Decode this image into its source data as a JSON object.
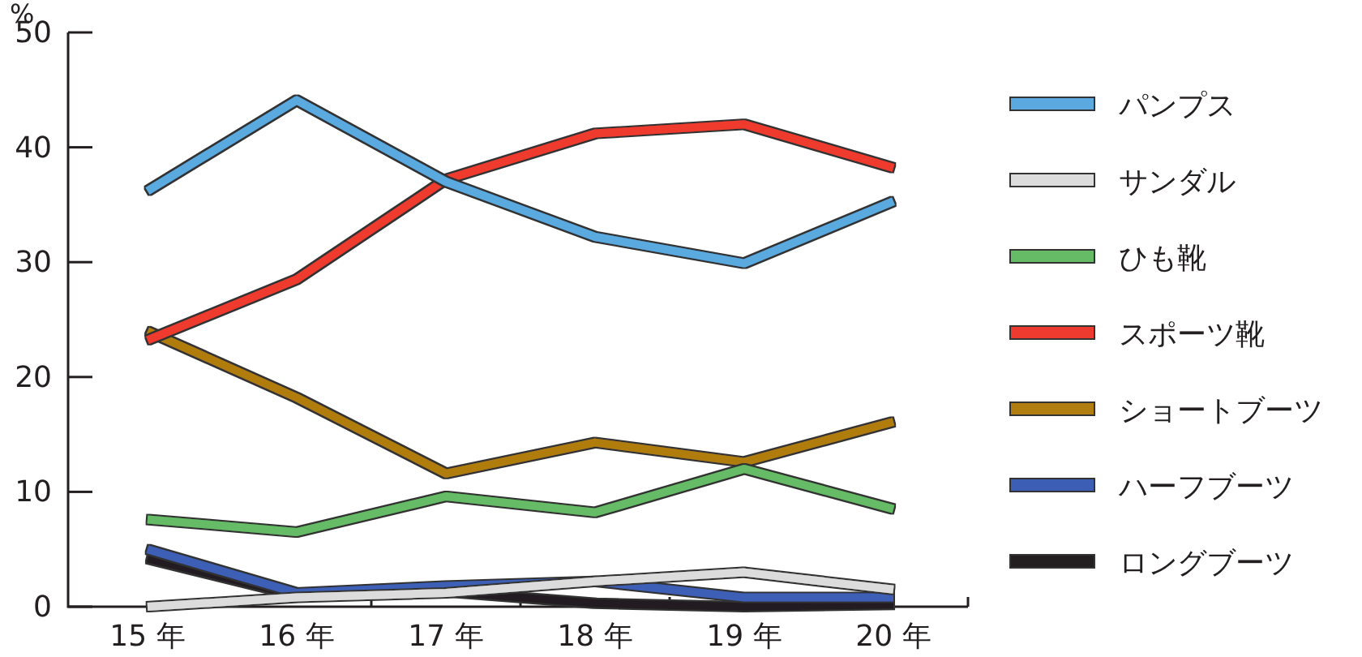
{
  "chart_data": {
    "type": "line",
    "ylabel": "%",
    "categories": [
      "15 年",
      "16 年",
      "17 年",
      "18 年",
      "19 年",
      "20 年"
    ],
    "ylim": [
      0,
      50
    ],
    "yticks": [
      0,
      10,
      20,
      30,
      40,
      50
    ],
    "grid": false,
    "legend": "right",
    "series": [
      {
        "name": "パンプス",
        "color": "#5aaae0",
        "values": [
          36.2,
          44.1,
          37.0,
          32.2,
          29.9,
          35.3
        ]
      },
      {
        "name": "サンダル",
        "color": "#dcdcdc",
        "values": [
          0,
          0.8,
          1.2,
          2.2,
          3.0,
          1.5
        ]
      },
      {
        "name": "ひも靴",
        "color": "#66bb66",
        "values": [
          7.6,
          6.5,
          9.6,
          8.2,
          12.0,
          8.5
        ]
      },
      {
        "name": "スポーツ靴",
        "color": "#ee3b2f",
        "values": [
          23.2,
          28.5,
          37.2,
          41.2,
          42.0,
          38.2
        ]
      },
      {
        "name": "ショートブーツ",
        "color": "#b07d10",
        "values": [
          24.0,
          18.2,
          11.6,
          14.3,
          12.6,
          16.1
        ]
      },
      {
        "name": "ハーフブーツ",
        "color": "#3c5fb5",
        "values": [
          5.0,
          1.2,
          1.8,
          2.2,
          0.8,
          0.8
        ]
      },
      {
        "name": "ロングブーツ",
        "color": "#231f20",
        "values": [
          4.2,
          1.0,
          1.3,
          0.3,
          0,
          0.2
        ]
      }
    ]
  }
}
